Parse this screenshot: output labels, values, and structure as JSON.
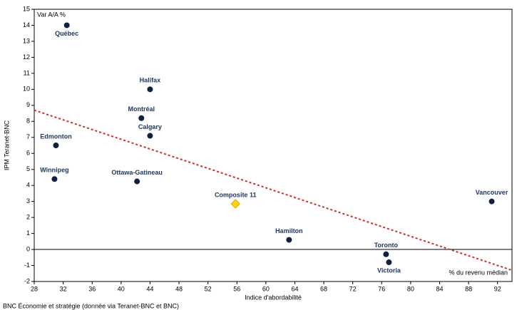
{
  "chart_data": {
    "type": "scatter",
    "y_label": "IPM Teranet-BNC",
    "x_label": "Indice d'abordabilité",
    "annotations": [
      "Var A/A %",
      "% du revenu médian"
    ],
    "source": "BNC Économie et stratégie (donnée via Teranet-BNC et BNC)",
    "labels": [
      "Québec",
      "Halifax",
      "Montréal",
      "Calgary",
      "Edmonton",
      "Winnipeg",
      "Ottawa-Gatineau",
      "Composite 11",
      "Vancouver",
      "Hamilton",
      "Toronto",
      "Victoria"
    ],
    "x": [
      32.5,
      44,
      42.8,
      44,
      31,
      30.8,
      42.2,
      55.8,
      91.2,
      63.2,
      76.6,
      77
    ],
    "y": [
      14.0,
      10.0,
      8.2,
      7.1,
      6.5,
      4.4,
      4.25,
      2.85,
      3.0,
      0.6,
      -0.3,
      -0.8
    ],
    "color": "#0d2240",
    "highlight": {
      "index": 7,
      "color": "#ffd700"
    },
    "trendline": {
      "x": [
        28,
        94
      ],
      "y": [
        8.7,
        -1.3
      ],
      "color": "#d42a2a"
    },
    "reference_line": 0,
    "xlim": [
      28,
      94
    ],
    "xticks": [
      28,
      32,
      36,
      40,
      44,
      48,
      52,
      56,
      60,
      64,
      68,
      72,
      76,
      80,
      84,
      88,
      92
    ],
    "ylim": [
      -2,
      15
    ],
    "yticks": [
      -2,
      -1,
      0,
      1,
      2,
      3,
      4,
      5,
      6,
      7,
      8,
      9,
      10,
      11,
      12,
      13,
      14,
      15
    ]
  }
}
